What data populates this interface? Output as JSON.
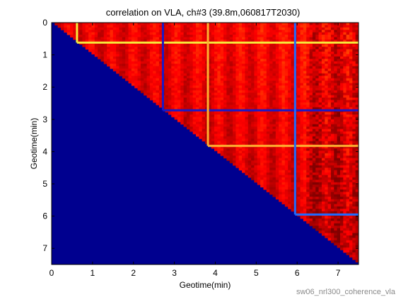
{
  "chart_data": {
    "type": "heatmap",
    "title": "correlation on VLA, ch#3 (39.8m,060817T2030)",
    "xlabel": "Geotime(min)",
    "ylabel": "Geotime(min)",
    "xlim": [
      0,
      7.5
    ],
    "ylim": [
      7.5,
      0
    ],
    "y_axis_direction": "reversed",
    "x_ticks": [
      0,
      1,
      2,
      3,
      4,
      5,
      6,
      7
    ],
    "y_ticks": [
      0,
      1,
      2,
      3,
      4,
      5,
      6,
      7
    ],
    "x_tick_labels": [
      "0",
      "1",
      "2",
      "3",
      "4",
      "5",
      "6",
      "7"
    ],
    "y_tick_labels": [
      "0",
      "1",
      "2",
      "3",
      "4",
      "5",
      "6",
      "7"
    ],
    "colormap": "jet",
    "grid": false,
    "legend": "none",
    "lower_triangle_value": "min (dark blue)",
    "upper_triangle_dominant_color": "red",
    "highlighted_times_min": [
      {
        "t": 0.62,
        "color": "#f6e83a"
      },
      {
        "t": 2.72,
        "color": "#1919c8"
      },
      {
        "t": 3.82,
        "color": "#ffb030"
      },
      {
        "t": 5.95,
        "color": "#1f6bff"
      }
    ],
    "colors": {
      "lower_triangle": "#00008f",
      "high_correlation": "#c81e00",
      "medium_high": "#ff7a10"
    }
  },
  "footnote": "sw06_nrl300_coherence_vla"
}
